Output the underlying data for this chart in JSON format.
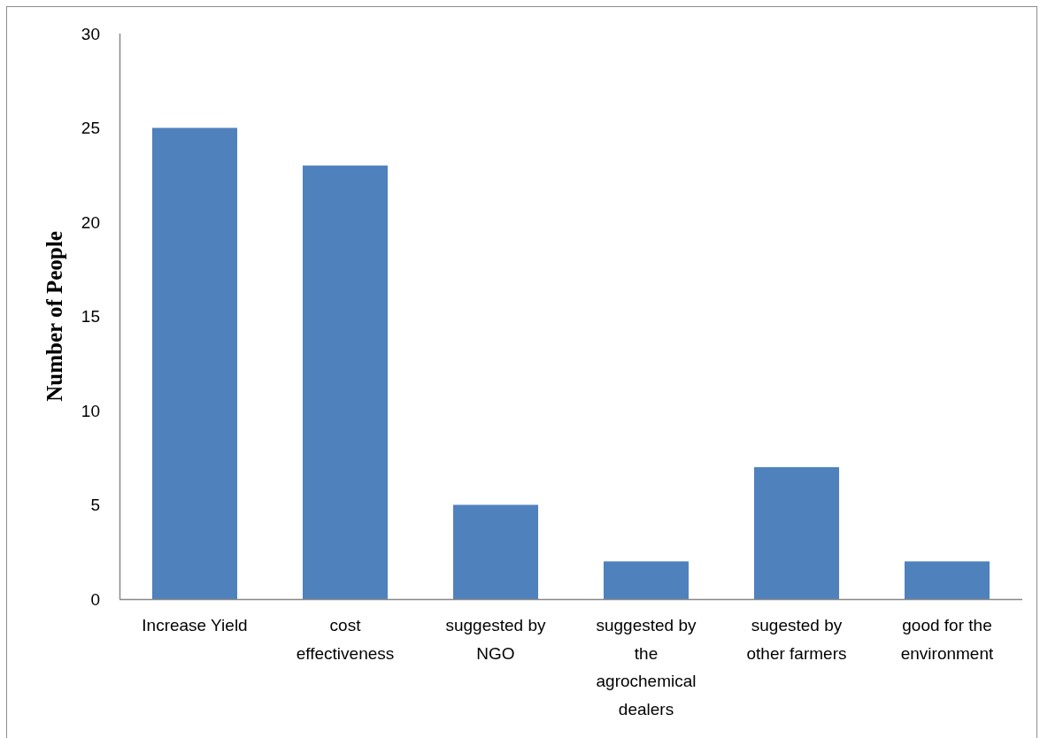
{
  "chart_data": {
    "type": "bar",
    "ylabel": "Number of People",
    "categories": [
      "Increase Yield",
      "cost effectiveness",
      "suggested by NGO",
      "suggested by the agrochemical dealers",
      "sugested by other farmers",
      "good for the environment"
    ],
    "values": [
      25,
      23,
      5,
      2,
      7,
      2
    ],
    "color": "#4f81bd",
    "ylim": [
      0,
      30
    ],
    "yticks": [
      0,
      5,
      10,
      15,
      20,
      25,
      30
    ]
  }
}
